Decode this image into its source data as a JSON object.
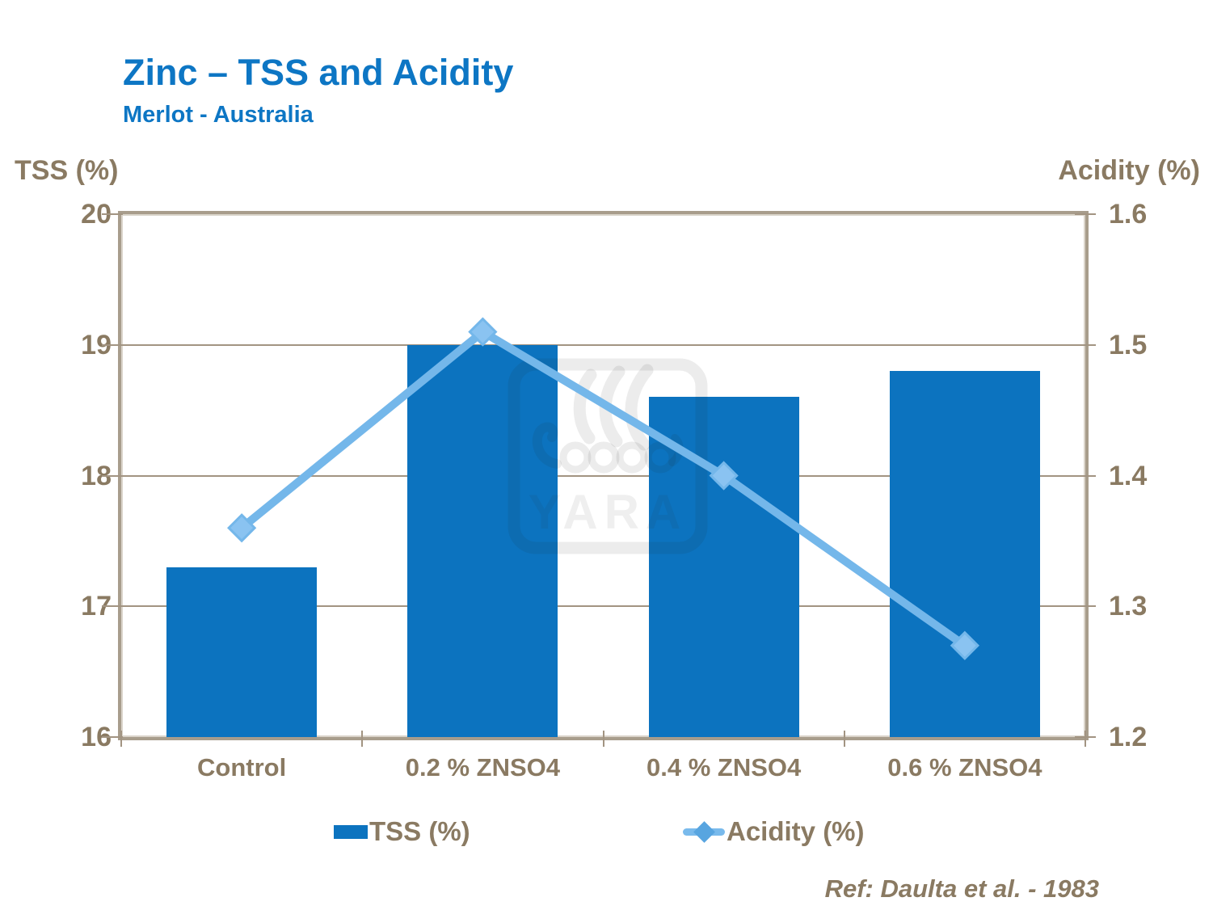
{
  "slide": {
    "title": "Zinc – TSS and Acidity",
    "subtitle": "Merlot - Australia",
    "reference": "Ref: Daulta et al. - 1983",
    "watermark_text": "YARA"
  },
  "axes": {
    "left_title": "TSS (%)",
    "right_title": "Acidity (%)"
  },
  "legend": {
    "tss_label": "TSS (%)",
    "acidity_label": "Acidity (%)"
  },
  "colors": {
    "title_blue": "#0d76c4",
    "bar_blue": "#0c73bf",
    "line_blue": "#74b7ea",
    "marker_blue": "#8ac3f1",
    "text_brown": "#8a7a62",
    "grid_brown": "#a29482",
    "frame_tan": "#a89d8c"
  },
  "chart_data": {
    "type": "bar+line combo",
    "title": "Zinc – TSS and Acidity",
    "subtitle": "Merlot - Australia",
    "categories": [
      "Control",
      "0.2 % ZNSO4",
      "0.4 % ZNSO4",
      "0.6 % ZNSO4"
    ],
    "series": [
      {
        "name": "TSS (%)",
        "type": "bar",
        "axis": "left",
        "values": [
          17.3,
          19.0,
          18.6,
          18.8
        ]
      },
      {
        "name": "Acidity (%)",
        "type": "line",
        "axis": "right",
        "values": [
          1.36,
          1.51,
          1.4,
          1.27
        ]
      }
    ],
    "left_axis": {
      "label": "TSS (%)",
      "min": 16,
      "max": 20,
      "ticks": [
        16,
        17,
        18,
        19,
        20
      ]
    },
    "right_axis": {
      "label": "Acidity (%)",
      "min": 1.2,
      "max": 1.6,
      "ticks": [
        1.2,
        1.3,
        1.4,
        1.5,
        1.6
      ]
    },
    "grid": "horizontal gridlines at each tick",
    "legend_position": "bottom",
    "annotation": "Ref: Daulta et al. - 1983"
  }
}
